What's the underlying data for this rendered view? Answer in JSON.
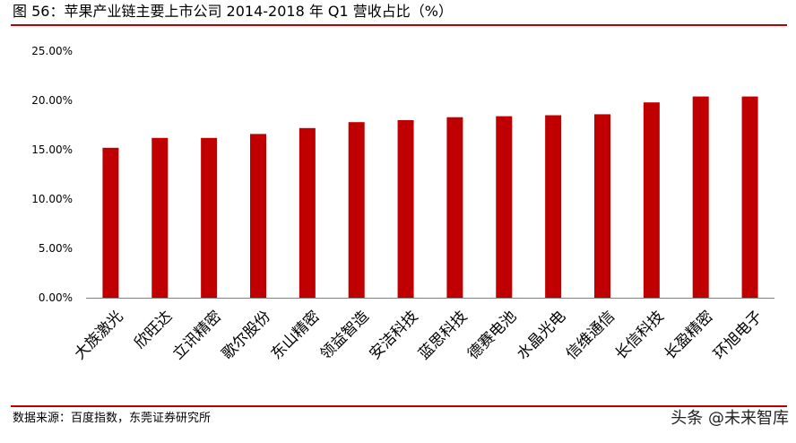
{
  "title": "图 56：苹果产业链主要上市公司 2014-2018 年 Q1 营收占比（%）",
  "source": "数据来源：百度指数，东莞证券研究所",
  "watermark": "头条 @未来智库",
  "colors": {
    "bar": "#c00000",
    "rule": "#c00000",
    "axis": "#808080"
  },
  "chart_data": {
    "type": "bar",
    "categories": [
      "大族激光",
      "欣旺达",
      "立讯精密",
      "歌尔股份",
      "东山精密",
      "领益智造",
      "安洁科技",
      "蓝思科技",
      "德赛电池",
      "水晶光电",
      "信维通信",
      "长信科技",
      "长盈精密",
      "环旭电子"
    ],
    "values": [
      15.2,
      16.2,
      16.2,
      16.6,
      17.2,
      17.8,
      18.0,
      18.3,
      18.4,
      18.5,
      18.6,
      19.8,
      20.4,
      20.4
    ],
    "ylim": [
      0,
      25
    ],
    "yticks": [
      0,
      5,
      10,
      15,
      20,
      25
    ],
    "ytick_labels": [
      "0.00%",
      "5.00%",
      "10.00%",
      "15.00%",
      "20.00%",
      "25.00%"
    ],
    "grid": false,
    "legend": "none",
    "xlabel": "",
    "ylabel": ""
  }
}
